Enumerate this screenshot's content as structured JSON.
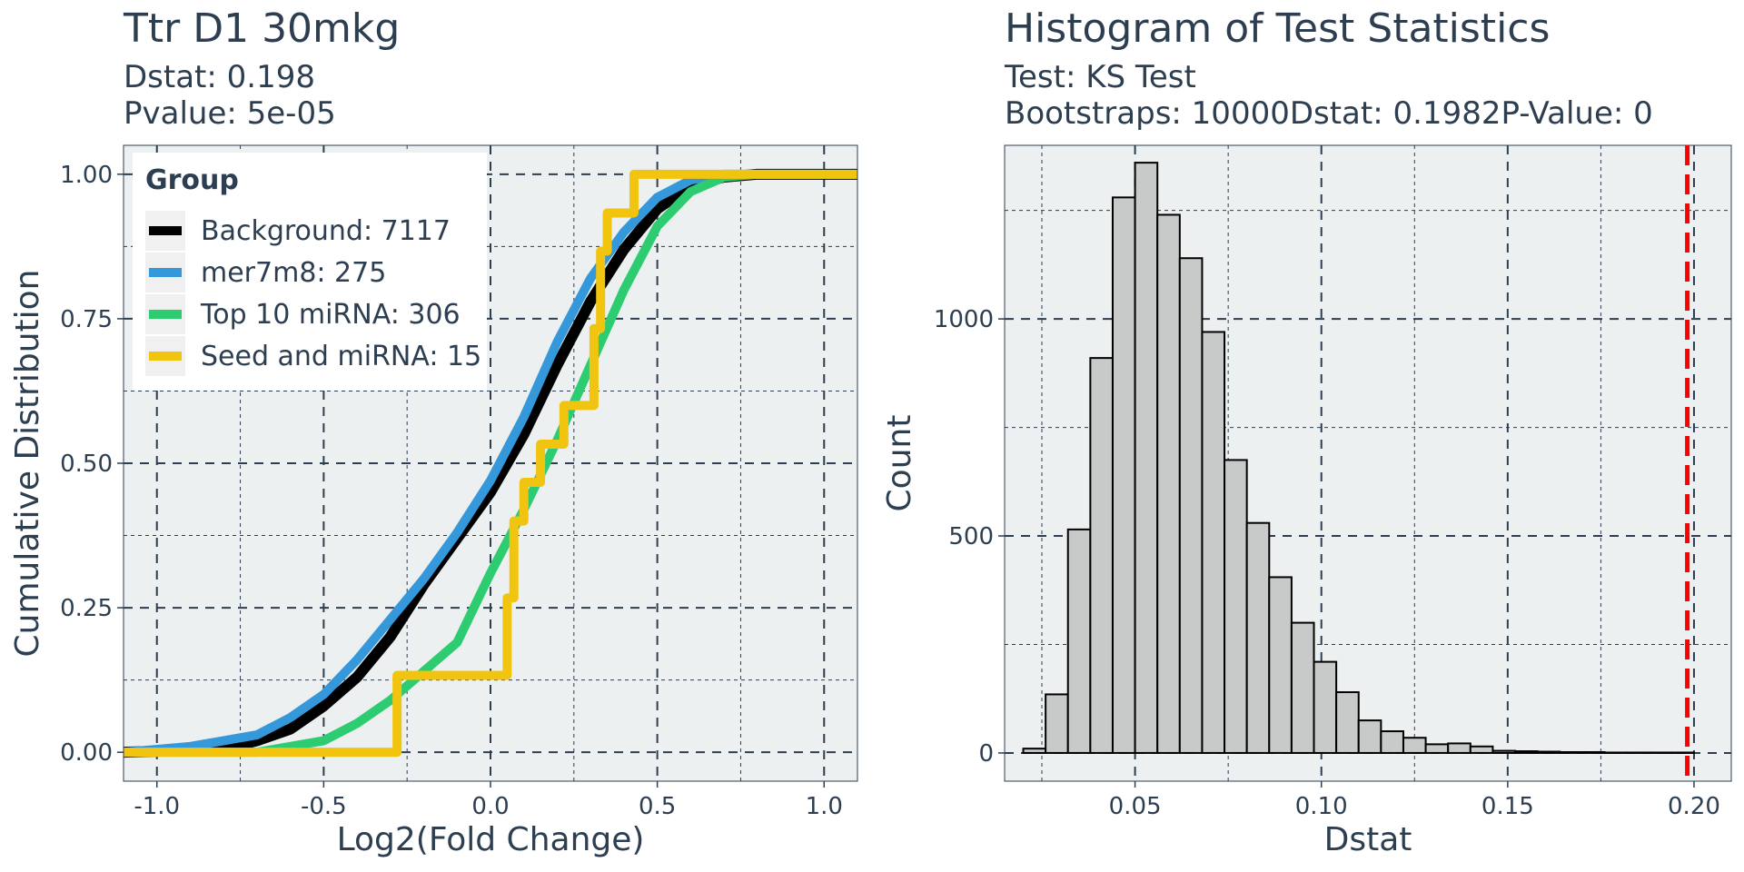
{
  "chart_data": [
    {
      "type": "line",
      "title": "Ttr D1 30mkg",
      "subtitle_lines": [
        "Dstat: 0.198",
        "Pvalue: 5e-05"
      ],
      "xlabel": "Log2(Fold Change)",
      "ylabel": "Cumulative Distribution",
      "xlim": [
        -1.1,
        1.1
      ],
      "ylim": [
        -0.05,
        1.05
      ],
      "xticks": [
        -1.0,
        -0.5,
        0.0,
        0.5,
        1.0
      ],
      "xtick_labels": [
        "-1.0",
        "-0.5",
        "0.0",
        "0.5",
        "1.0"
      ],
      "yticks": [
        0.0,
        0.25,
        0.5,
        0.75,
        1.0
      ],
      "ytick_labels": [
        "0.00",
        "0.25",
        "0.50",
        "0.75",
        "1.00"
      ],
      "grid": true,
      "legend": {
        "title": "Group",
        "position": "top-left",
        "entries": [
          "Background: 7117",
          "mer7m8: 275",
          "Top 10 miRNA: 306",
          "Seed and miRNA: 15"
        ]
      },
      "series": [
        {
          "name": "Background: 7117",
          "color": "#000000",
          "x": [
            -1.1,
            -0.8,
            -0.7,
            -0.6,
            -0.5,
            -0.4,
            -0.3,
            -0.2,
            -0.1,
            0.0,
            0.1,
            0.2,
            0.3,
            0.4,
            0.5,
            0.6,
            0.7,
            0.8,
            1.1
          ],
          "y": [
            0.0,
            0.005,
            0.02,
            0.04,
            0.08,
            0.13,
            0.2,
            0.29,
            0.37,
            0.45,
            0.55,
            0.67,
            0.78,
            0.87,
            0.94,
            0.98,
            0.995,
            1.0,
            1.0
          ]
        },
        {
          "name": "mer7m8: 275",
          "color": "#3498db",
          "x": [
            -1.1,
            -0.9,
            -0.7,
            -0.6,
            -0.5,
            -0.4,
            -0.3,
            -0.2,
            -0.1,
            0.0,
            0.1,
            0.2,
            0.3,
            0.4,
            0.5,
            0.6,
            0.7,
            1.1
          ],
          "y": [
            0.0,
            0.01,
            0.03,
            0.06,
            0.1,
            0.16,
            0.23,
            0.3,
            0.38,
            0.47,
            0.58,
            0.71,
            0.82,
            0.9,
            0.96,
            0.99,
            1.0,
            1.0
          ]
        },
        {
          "name": "Top 10 miRNA: 306",
          "color": "#2ecc71",
          "x": [
            -1.1,
            -0.7,
            -0.5,
            -0.4,
            -0.3,
            -0.2,
            -0.1,
            -0.05,
            0.0,
            0.1,
            0.2,
            0.3,
            0.4,
            0.5,
            0.6,
            0.7,
            0.8,
            1.1
          ],
          "y": [
            0.0,
            0.0,
            0.02,
            0.05,
            0.09,
            0.14,
            0.19,
            0.25,
            0.31,
            0.42,
            0.54,
            0.67,
            0.8,
            0.91,
            0.97,
            0.995,
            1.0,
            1.0
          ]
        },
        {
          "name": "Seed and miRNA: 15",
          "color": "#f1c40f",
          "step": true,
          "x": [
            -1.1,
            -0.28,
            -0.26,
            0.05,
            0.07,
            0.1,
            0.15,
            0.22,
            0.31,
            0.33,
            0.35,
            0.43,
            1.1
          ],
          "y": [
            0.0,
            0.133,
            0.133,
            0.267,
            0.4,
            0.467,
            0.533,
            0.6,
            0.733,
            0.867,
            0.933,
            1.0,
            1.0
          ]
        }
      ]
    },
    {
      "type": "bar",
      "title": "Histogram of Test Statistics",
      "subtitle_lines": [
        "Test: KS Test",
        "Bootstraps: 10000Dstat: 0.1982P-Value: 0"
      ],
      "xlabel": "Dstat",
      "ylabel": "Count",
      "xlim": [
        0.015,
        0.21
      ],
      "ylim": [
        -65,
        1400
      ],
      "xticks": [
        0.05,
        0.1,
        0.15,
        0.2
      ],
      "xtick_labels": [
        "0.05",
        "0.10",
        "0.15",
        "0.20"
      ],
      "yticks": [
        0,
        500,
        1000
      ],
      "ytick_labels": [
        "0",
        "500",
        "1000"
      ],
      "grid": true,
      "bin_start": 0.02,
      "bin_width": 0.006,
      "bar_color": "#c8c9c9",
      "counts": [
        10,
        135,
        515,
        910,
        1280,
        1360,
        1240,
        1140,
        970,
        675,
        530,
        405,
        300,
        210,
        140,
        75,
        50,
        35,
        20,
        22,
        15,
        5,
        4,
        3,
        2,
        2,
        1,
        1,
        1,
        1
      ],
      "vline": {
        "x": 0.1982,
        "color": "#ff0000",
        "style": "dashed"
      }
    }
  ]
}
